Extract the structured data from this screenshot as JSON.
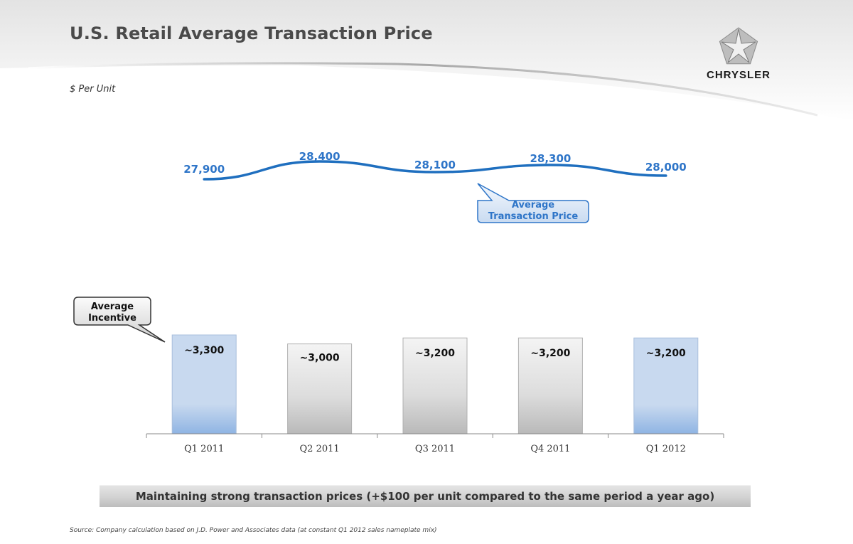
{
  "header": {
    "title": "U.S. Retail Average Transaction Price",
    "subtitle": "$ Per Unit",
    "brand": "CHRYSLER"
  },
  "chart_data": {
    "type": "line+bar",
    "categories": [
      "Q1 2011",
      "Q2 2011",
      "Q3 2011",
      "Q4 2011",
      "Q1 2012"
    ],
    "series": [
      {
        "name": "Average Transaction Price",
        "type": "line",
        "values": [
          27900,
          28400,
          28100,
          28300,
          28000
        ],
        "labels": [
          "27,900",
          "28,400",
          "28,100",
          "28,300",
          "28,000"
        ],
        "color": "#1f6fbf"
      },
      {
        "name": "Average Incentive",
        "type": "bar",
        "values": [
          3300,
          3000,
          3200,
          3200,
          3200
        ],
        "labels": [
          "~3,300",
          "~3,000",
          "~3,200",
          "~3,200",
          "~3,200"
        ],
        "highlighted": [
          true,
          false,
          false,
          false,
          true
        ]
      }
    ],
    "callouts": {
      "line": "Average Transaction Price",
      "bar": "Average Incentive"
    },
    "colors": {
      "line_label": "#2e75c8",
      "bar_highlight_top": "#c8d9ef",
      "bar_highlight_bottom": "#8fb4e3",
      "bar_gray_top": "#f4f4f4",
      "bar_gray_bottom": "#b9b9b9"
    }
  },
  "footer": {
    "banner": "Maintaining strong transaction prices (+$100 per unit compared to the same period a year ago)",
    "source": "Source: Company calculation based on J.D. Power and Associates data (at constant Q1 2012 sales nameplate mix)"
  }
}
